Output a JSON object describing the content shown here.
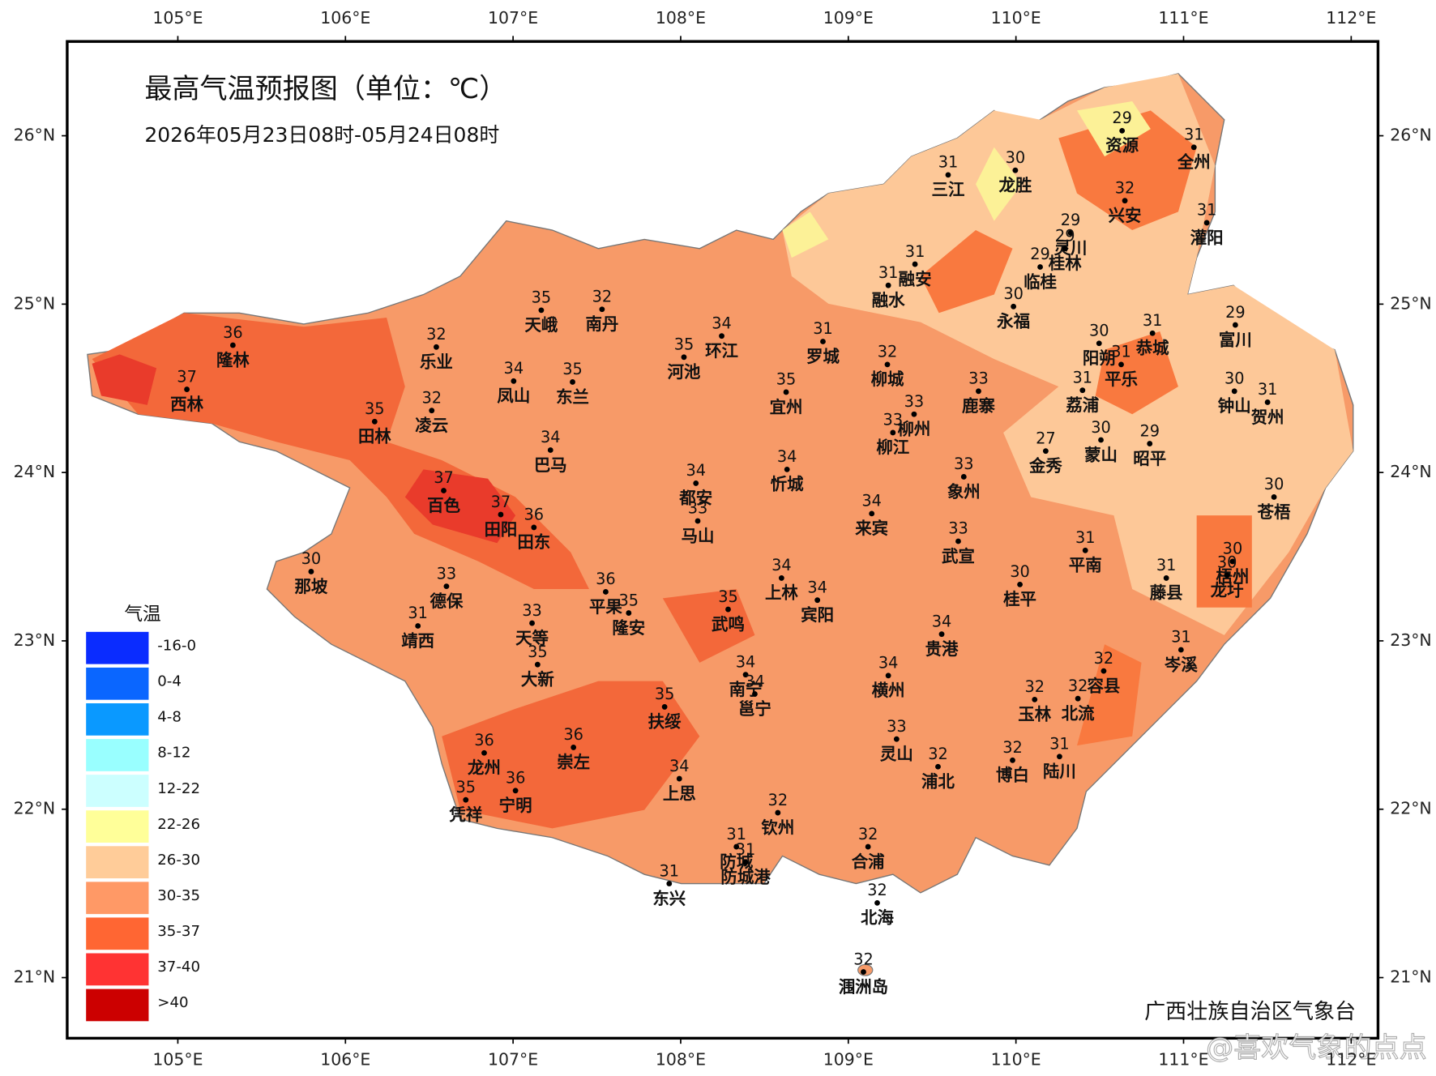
{
  "chart_data": {
    "type": "map",
    "title": "最高气温预报图（单位：℃）",
    "subtitle": "2026年05月23日08时-05月24日08时",
    "credit": "广西壮族自治区气象台",
    "watermark": "@喜欢气象的点点",
    "xlim": [
      104.34,
      112.16
    ],
    "ylim": [
      20.64,
      26.56
    ],
    "xticks": [
      {
        "value": 105,
        "label": "105°E"
      },
      {
        "value": 106,
        "label": "106°E"
      },
      {
        "value": 107,
        "label": "107°E"
      },
      {
        "value": 108,
        "label": "108°E"
      },
      {
        "value": 109,
        "label": "109°E"
      },
      {
        "value": 110,
        "label": "110°E"
      },
      {
        "value": 111,
        "label": "111°E"
      },
      {
        "value": 112,
        "label": "112°E"
      }
    ],
    "yticks": [
      {
        "value": 21,
        "label": "21°N"
      },
      {
        "value": 22,
        "label": "22°N"
      },
      {
        "value": 23,
        "label": "23°N"
      },
      {
        "value": 24,
        "label": "24°N"
      },
      {
        "value": 25,
        "label": "25°N"
      },
      {
        "value": 26,
        "label": "26°N"
      }
    ],
    "legend": {
      "title": "气温",
      "items": [
        {
          "label": "-16-0",
          "color": "#0a2cff"
        },
        {
          "label": "0-4",
          "color": "#0a66ff"
        },
        {
          "label": "4-8",
          "color": "#0a99ff"
        },
        {
          "label": "8-12",
          "color": "#99ffff"
        },
        {
          "label": "12-22",
          "color": "#ccffff"
        },
        {
          "label": "22-26",
          "color": "#ffff99"
        },
        {
          "label": "26-30",
          "color": "#ffcc99"
        },
        {
          "label": "30-35",
          "color": "#ff9966"
        },
        {
          "label": "35-37",
          "color": "#ff6633"
        },
        {
          "label": "37-40",
          "color": "#ff3333"
        },
        {
          "label": ">40",
          "color": "#cc0000"
        }
      ]
    },
    "cities": [
      {
        "name": "资源",
        "temp": 29
      },
      {
        "name": "全州",
        "temp": 31
      },
      {
        "name": "三江",
        "temp": 31
      },
      {
        "name": "龙胜",
        "temp": 30
      },
      {
        "name": "兴安",
        "temp": 32
      },
      {
        "name": "灌阳",
        "temp": 31
      },
      {
        "name": "灵川",
        "temp": 29
      },
      {
        "name": "桂林",
        "temp": 29
      },
      {
        "name": "临桂",
        "temp": 29
      },
      {
        "name": "融安",
        "temp": 31
      },
      {
        "name": "融水",
        "temp": 31
      },
      {
        "name": "永福",
        "temp": 30
      },
      {
        "name": "隆林",
        "temp": 36
      },
      {
        "name": "天峨",
        "temp": 35
      },
      {
        "name": "南丹",
        "temp": 32
      },
      {
        "name": "乐业",
        "temp": 32
      },
      {
        "name": "环江",
        "temp": 34
      },
      {
        "name": "河池",
        "temp": 35
      },
      {
        "name": "罗城",
        "temp": 31
      },
      {
        "name": "柳城",
        "temp": 32
      },
      {
        "name": "鹿寨",
        "temp": 33
      },
      {
        "name": "富川",
        "temp": 29
      },
      {
        "name": "阳朔",
        "temp": 30
      },
      {
        "name": "恭城",
        "temp": 31
      },
      {
        "name": "平乐",
        "temp": 31
      },
      {
        "name": "荔浦",
        "temp": 31
      },
      {
        "name": "钟山",
        "temp": 30
      },
      {
        "name": "贺州",
        "temp": 31
      },
      {
        "name": "西林",
        "temp": 37
      },
      {
        "name": "凤山",
        "temp": 34
      },
      {
        "name": "东兰",
        "temp": 35
      },
      {
        "name": "田林",
        "temp": 35
      },
      {
        "name": "凌云",
        "temp": 32
      },
      {
        "name": "宜州",
        "temp": 35
      },
      {
        "name": "柳州",
        "temp": 33
      },
      {
        "name": "柳江",
        "temp": 33
      },
      {
        "name": "蒙山",
        "temp": 30
      },
      {
        "name": "昭平",
        "temp": 29
      },
      {
        "name": "金秀",
        "temp": 27
      },
      {
        "name": "巴马",
        "temp": 34
      },
      {
        "name": "忻城",
        "temp": 34
      },
      {
        "name": "象州",
        "temp": 33
      },
      {
        "name": "都安",
        "temp": 34
      },
      {
        "name": "马山",
        "temp": 33
      },
      {
        "name": "来宾",
        "temp": 34
      },
      {
        "name": "苍梧",
        "temp": 30
      },
      {
        "name": "百色",
        "temp": 37
      },
      {
        "name": "田阳",
        "temp": 37
      },
      {
        "name": "田东",
        "temp": 36
      },
      {
        "name": "武宣",
        "temp": 33
      },
      {
        "name": "平南",
        "temp": 31
      },
      {
        "name": "梧州",
        "temp": 30
      },
      {
        "name": "龙圩",
        "temp": 30
      },
      {
        "name": "藤县",
        "temp": 31
      },
      {
        "name": "那坡",
        "temp": 30
      },
      {
        "name": "德保",
        "temp": 33
      },
      {
        "name": "上林",
        "temp": 34
      },
      {
        "name": "宾阳",
        "temp": 34
      },
      {
        "name": "桂平",
        "temp": 30
      },
      {
        "name": "平果",
        "temp": 36
      },
      {
        "name": "隆安",
        "temp": 35
      },
      {
        "name": "武鸣",
        "temp": 35
      },
      {
        "name": "靖西",
        "temp": 31
      },
      {
        "name": "天等",
        "temp": 33
      },
      {
        "name": "大新",
        "temp": 35
      },
      {
        "name": "贵港",
        "temp": 34
      },
      {
        "name": "岑溪",
        "temp": 31
      },
      {
        "name": "南宁",
        "temp": 34
      },
      {
        "name": "邕宁",
        "temp": 34
      },
      {
        "name": "横州",
        "temp": 34
      },
      {
        "name": "容县",
        "temp": 32
      },
      {
        "name": "玉林",
        "temp": 32
      },
      {
        "name": "北流",
        "temp": 32
      },
      {
        "name": "扶绥",
        "temp": 35
      },
      {
        "name": "灵山",
        "temp": 33
      },
      {
        "name": "浦北",
        "temp": 32
      },
      {
        "name": "博白",
        "temp": 32
      },
      {
        "name": "陆川",
        "temp": 31
      },
      {
        "name": "龙州",
        "temp": 36
      },
      {
        "name": "崇左",
        "temp": 36
      },
      {
        "name": "上思",
        "temp": 34
      },
      {
        "name": "凭祥",
        "temp": 35
      },
      {
        "name": "宁明",
        "temp": 36
      },
      {
        "name": "钦州",
        "temp": 32
      },
      {
        "name": "合浦",
        "temp": 32
      },
      {
        "name": "防城",
        "temp": 31
      },
      {
        "name": "防城港",
        "temp": 31
      },
      {
        "name": "东兴",
        "temp": 31
      },
      {
        "name": "北海",
        "temp": 32
      },
      {
        "name": "涠洲岛",
        "temp": 32
      }
    ]
  }
}
